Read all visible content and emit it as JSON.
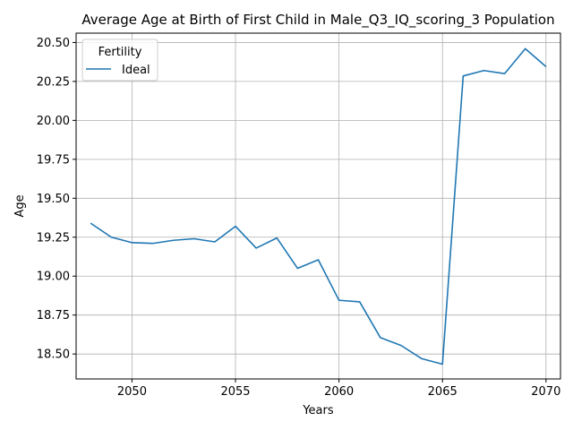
{
  "chart_data": {
    "type": "line",
    "title": "Average Age at Birth of First Child in Male_Q3_IQ_scoring_3 Population",
    "xlabel": "Years",
    "ylabel": "Age",
    "xlim": [
      2047.3,
      2070.7
    ],
    "ylim": [
      18.34,
      20.56
    ],
    "xticks": [
      2050,
      2055,
      2060,
      2065,
      2070
    ],
    "yticks": [
      18.5,
      18.75,
      19.0,
      19.25,
      19.5,
      19.75,
      20.0,
      20.25,
      20.5
    ],
    "ytick_labels": [
      "18.50",
      "18.75",
      "19.00",
      "19.25",
      "19.50",
      "19.75",
      "20.00",
      "20.25",
      "20.50"
    ],
    "grid": true,
    "legend": {
      "title": "Fertility",
      "position": "upper-left"
    },
    "series": [
      {
        "name": "Ideal",
        "color": "#1f77b4",
        "x": [
          2048,
          2049,
          2050,
          2051,
          2052,
          2053,
          2054,
          2055,
          2056,
          2057,
          2058,
          2059,
          2060,
          2061,
          2062,
          2063,
          2064,
          2065,
          2066,
          2067,
          2068,
          2069,
          2070
        ],
        "y": [
          19.34,
          19.25,
          19.215,
          19.21,
          19.23,
          19.24,
          19.22,
          19.32,
          19.18,
          19.245,
          19.05,
          19.105,
          18.845,
          18.835,
          18.605,
          18.555,
          18.47,
          18.435,
          20.285,
          20.32,
          20.3,
          20.46,
          20.345
        ]
      }
    ]
  }
}
